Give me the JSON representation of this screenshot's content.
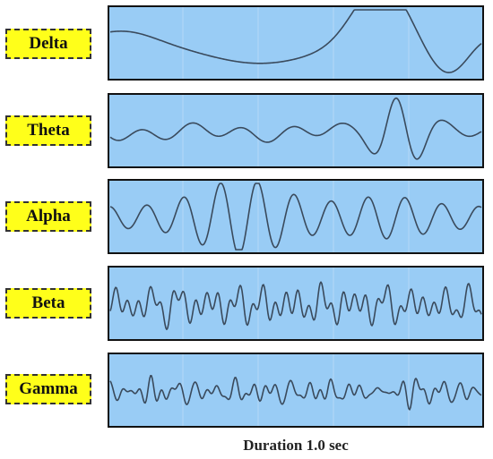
{
  "colors": {
    "label_background": "#ffff1a",
    "panel_background": "#99ccf5",
    "wave_line": "#3a4a5c",
    "grid_line": "#b5d9f7",
    "panel_border": "#111111"
  },
  "bands": [
    {
      "id": "delta",
      "label": "Delta"
    },
    {
      "id": "theta",
      "label": "Theta"
    },
    {
      "id": "alpha",
      "label": "Alpha"
    },
    {
      "id": "beta",
      "label": "Beta"
    },
    {
      "id": "gamma",
      "label": "Gamma"
    }
  ],
  "caption": "Duration 1.0 sec"
}
